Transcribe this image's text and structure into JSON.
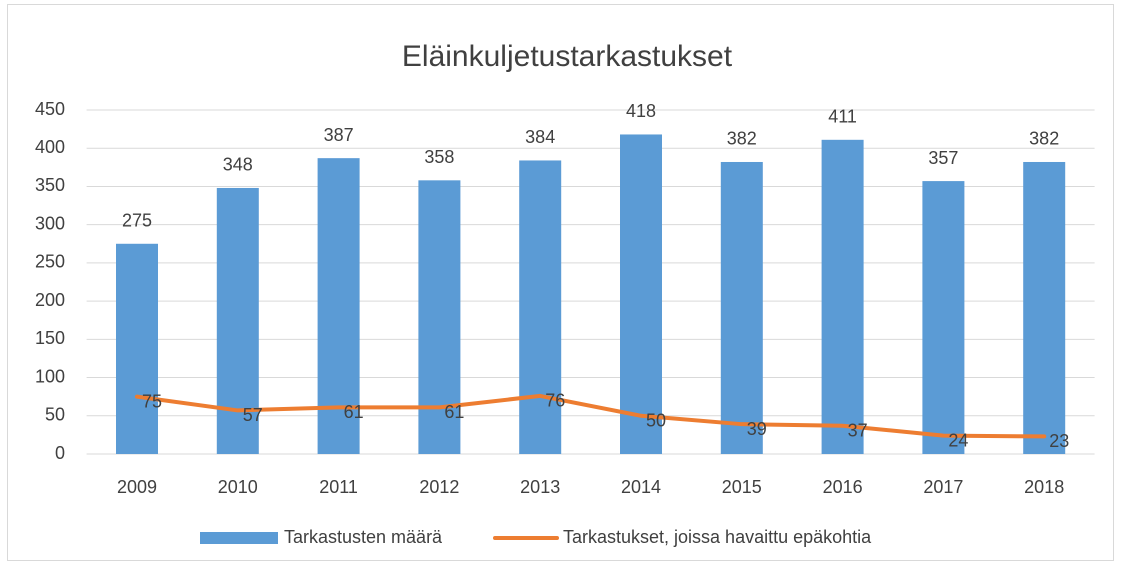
{
  "chart_data": {
    "type": "bar",
    "title": "Eläinkuljetustarkastukset",
    "categories": [
      "2009",
      "2010",
      "2011",
      "2012",
      "2013",
      "2014",
      "2015",
      "2016",
      "2017",
      "2018"
    ],
    "series": [
      {
        "name": "Tarkastusten määrä",
        "type": "bar",
        "color": "#5b9bd5",
        "values": [
          275,
          348,
          387,
          358,
          384,
          418,
          382,
          411,
          357,
          382
        ]
      },
      {
        "name": "Tarkastukset, joissa havaittu epäkohtia",
        "type": "line",
        "color": "#ed7d31",
        "values": [
          75,
          57,
          61,
          61,
          76,
          50,
          39,
          37,
          24,
          23
        ]
      }
    ],
    "ylim": [
      0,
      450
    ],
    "yticks": [
      0,
      50,
      100,
      150,
      200,
      250,
      300,
      350,
      400,
      450
    ],
    "grid": true,
    "legend": "bottom"
  }
}
